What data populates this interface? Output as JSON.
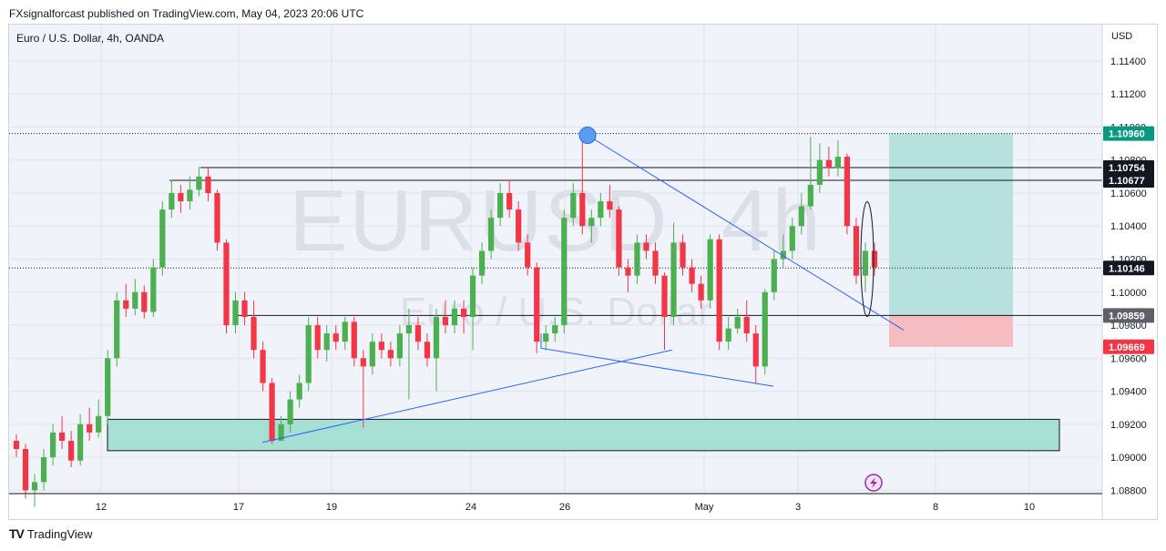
{
  "header": {
    "published": "FXsignalforcast published on TradingView.com, May 04, 2023 20:06 UTC"
  },
  "symbol_title": "Euro / U.S. Dollar, 4h, OANDA",
  "watermark": {
    "main": "EURUSD, 4h",
    "sub": "Euro / U.S. Dollar"
  },
  "currency": "USD",
  "footer": {
    "brand": "TradingView"
  },
  "colors": {
    "up": "#4caf50",
    "down": "#f23645",
    "trendline": "#2962ff",
    "zone": "#a6e0d3",
    "target_zone": "#b2dfdb",
    "stop_zone": "#f7b7bf",
    "target_label": "#089981",
    "stop_label": "#f23645",
    "level_label": "#131722",
    "current_label": "#131722"
  },
  "chart_data": {
    "type": "candlestick",
    "symbol": "EURUSD",
    "timeframe": "4h",
    "ylim": [
      1.0878,
      1.1162
    ],
    "y_ticks": [
      "1.11400",
      "1.11200",
      "1.11000",
      "1.10800",
      "1.10600",
      "1.10400",
      "1.10200",
      "1.10000",
      "1.09800",
      "1.09600",
      "1.09400",
      "1.09200",
      "1.09000",
      "1.08800"
    ],
    "x_ticks": [
      "12",
      "17",
      "19",
      "24",
      "26",
      "May",
      "3",
      "8",
      "10"
    ],
    "candles_sampled": [
      {
        "o": 1.091,
        "c": 1.0905,
        "h": 1.0914,
        "l": 1.09
      },
      {
        "o": 1.0905,
        "c": 1.088,
        "h": 1.0908,
        "l": 1.0875
      },
      {
        "o": 1.088,
        "c": 1.0885,
        "h": 1.089,
        "l": 1.087
      },
      {
        "o": 1.0885,
        "c": 1.09,
        "h": 1.0905,
        "l": 1.088
      },
      {
        "o": 1.09,
        "c": 1.0915,
        "h": 1.092,
        "l": 1.0895
      },
      {
        "o": 1.0915,
        "c": 1.091,
        "h": 1.0925,
        "l": 1.0905
      },
      {
        "o": 1.091,
        "c": 1.0898,
        "h": 1.0916,
        "l": 1.0894
      },
      {
        "o": 1.0898,
        "c": 1.092,
        "h": 1.0926,
        "l": 1.0895
      },
      {
        "o": 1.092,
        "c": 1.0915,
        "h": 1.093,
        "l": 1.091
      },
      {
        "o": 1.0915,
        "c": 1.0925,
        "h": 1.0935,
        "l": 1.0912
      },
      {
        "o": 1.0925,
        "c": 1.096,
        "h": 1.0965,
        "l": 1.092
      },
      {
        "o": 1.096,
        "c": 1.0995,
        "h": 1.1,
        "l": 1.0955
      },
      {
        "o": 1.0995,
        "c": 1.099,
        "h": 1.1005,
        "l": 1.0985
      },
      {
        "o": 1.099,
        "c": 1.1,
        "h": 1.1008,
        "l": 1.0986
      },
      {
        "o": 1.1,
        "c": 1.0988,
        "h": 1.1004,
        "l": 1.0984
      },
      {
        "o": 1.0988,
        "c": 1.1015,
        "h": 1.102,
        "l": 1.0985
      },
      {
        "o": 1.1015,
        "c": 1.105,
        "h": 1.1055,
        "l": 1.101
      },
      {
        "o": 1.105,
        "c": 1.106,
        "h": 1.1068,
        "l": 1.1045
      },
      {
        "o": 1.106,
        "c": 1.1055,
        "h": 1.1065,
        "l": 1.1048
      },
      {
        "o": 1.1055,
        "c": 1.1062,
        "h": 1.107,
        "l": 1.105
      },
      {
        "o": 1.1062,
        "c": 1.107,
        "h": 1.1076,
        "l": 1.1058
      },
      {
        "o": 1.107,
        "c": 1.106,
        "h": 1.1075,
        "l": 1.1055
      },
      {
        "o": 1.106,
        "c": 1.103,
        "h": 1.1062,
        "l": 1.1025
      },
      {
        "o": 1.103,
        "c": 1.098,
        "h": 1.1032,
        "l": 1.0975
      },
      {
        "o": 1.098,
        "c": 1.0995,
        "h": 1.1,
        "l": 1.0975
      },
      {
        "o": 1.0995,
        "c": 1.0985,
        "h": 1.1,
        "l": 1.098
      },
      {
        "o": 1.0985,
        "c": 1.0965,
        "h": 1.0995,
        "l": 1.096
      },
      {
        "o": 1.0965,
        "c": 1.0945,
        "h": 1.097,
        "l": 1.094
      },
      {
        "o": 1.0945,
        "c": 1.091,
        "h": 1.0948,
        "l": 1.0908
      },
      {
        "o": 1.091,
        "c": 1.092,
        "h": 1.0925,
        "l": 1.091
      },
      {
        "o": 1.092,
        "c": 1.0935,
        "h": 1.094,
        "l": 1.0915
      },
      {
        "o": 1.0935,
        "c": 1.0945,
        "h": 1.095,
        "l": 1.093
      },
      {
        "o": 1.0945,
        "c": 1.098,
        "h": 1.0985,
        "l": 1.094
      },
      {
        "o": 1.098,
        "c": 1.0965,
        "h": 1.0985,
        "l": 1.096
      },
      {
        "o": 1.0965,
        "c": 1.0975,
        "h": 1.098,
        "l": 1.0958
      },
      {
        "o": 1.0975,
        "c": 1.097,
        "h": 1.098,
        "l": 1.0965
      },
      {
        "o": 1.097,
        "c": 1.0982,
        "h": 1.0985,
        "l": 1.0965
      },
      {
        "o": 1.0982,
        "c": 1.096,
        "h": 1.0985,
        "l": 1.0955
      },
      {
        "o": 1.096,
        "c": 1.0955,
        "h": 1.0965,
        "l": 1.0918
      },
      {
        "o": 1.0955,
        "c": 1.097,
        "h": 1.0975,
        "l": 1.095
      },
      {
        "o": 1.097,
        "c": 1.0965,
        "h": 1.0975,
        "l": 1.096
      },
      {
        "o": 1.0965,
        "c": 1.096,
        "h": 1.097,
        "l": 1.0955
      },
      {
        "o": 1.096,
        "c": 1.0975,
        "h": 1.098,
        "l": 1.0955
      },
      {
        "o": 1.0975,
        "c": 1.098,
        "h": 1.099,
        "l": 1.0935
      },
      {
        "o": 1.098,
        "c": 1.097,
        "h": 1.0985,
        "l": 1.0965
      },
      {
        "o": 1.097,
        "c": 1.096,
        "h": 1.0975,
        "l": 1.0955
      },
      {
        "o": 1.096,
        "c": 1.0985,
        "h": 1.099,
        "l": 1.094
      },
      {
        "o": 1.0985,
        "c": 1.098,
        "h": 1.0995,
        "l": 1.0975
      },
      {
        "o": 1.098,
        "c": 1.099,
        "h": 1.0995,
        "l": 1.0975
      },
      {
        "o": 1.099,
        "c": 1.0985,
        "h": 1.0995,
        "l": 1.0975
      },
      {
        "o": 1.0985,
        "c": 1.101,
        "h": 1.1015,
        "l": 1.0965
      },
      {
        "o": 1.101,
        "c": 1.1025,
        "h": 1.103,
        "l": 1.1005
      },
      {
        "o": 1.1025,
        "c": 1.1045,
        "h": 1.105,
        "l": 1.102
      },
      {
        "o": 1.1045,
        "c": 1.106,
        "h": 1.1066,
        "l": 1.104
      },
      {
        "o": 1.106,
        "c": 1.105,
        "h": 1.1068,
        "l": 1.1045
      },
      {
        "o": 1.105,
        "c": 1.103,
        "h": 1.1055,
        "l": 1.1025
      },
      {
        "o": 1.103,
        "c": 1.1015,
        "h": 1.1035,
        "l": 1.101
      },
      {
        "o": 1.1015,
        "c": 1.097,
        "h": 1.1018,
        "l": 1.0963
      },
      {
        "o": 1.097,
        "c": 1.0975,
        "h": 1.098,
        "l": 1.0965
      },
      {
        "o": 1.0975,
        "c": 1.098,
        "h": 1.0985,
        "l": 1.097
      },
      {
        "o": 1.098,
        "c": 1.1045,
        "h": 1.105,
        "l": 1.0975
      },
      {
        "o": 1.1045,
        "c": 1.106,
        "h": 1.1066,
        "l": 1.104
      },
      {
        "o": 1.106,
        "c": 1.104,
        "h": 1.1096,
        "l": 1.1035
      },
      {
        "o": 1.104,
        "c": 1.1045,
        "h": 1.105,
        "l": 1.103
      },
      {
        "o": 1.1045,
        "c": 1.1055,
        "h": 1.106,
        "l": 1.104
      },
      {
        "o": 1.1055,
        "c": 1.105,
        "h": 1.1065,
        "l": 1.1045
      },
      {
        "o": 1.105,
        "c": 1.1015,
        "h": 1.1052,
        "l": 1.101
      },
      {
        "o": 1.1015,
        "c": 1.101,
        "h": 1.102,
        "l": 1.1
      },
      {
        "o": 1.101,
        "c": 1.103,
        "h": 1.1035,
        "l": 1.1005
      },
      {
        "o": 1.103,
        "c": 1.1025,
        "h": 1.1035,
        "l": 1.102
      },
      {
        "o": 1.1025,
        "c": 1.101,
        "h": 1.103,
        "l": 1.1005
      },
      {
        "o": 1.101,
        "c": 1.0985,
        "h": 1.1012,
        "l": 1.0965
      },
      {
        "o": 1.0985,
        "c": 1.103,
        "h": 1.1042,
        "l": 1.098
      },
      {
        "o": 1.103,
        "c": 1.1015,
        "h": 1.1035,
        "l": 1.101
      },
      {
        "o": 1.1015,
        "c": 1.1005,
        "h": 1.102,
        "l": 1.1
      },
      {
        "o": 1.1005,
        "c": 1.0995,
        "h": 1.101,
        "l": 1.099
      },
      {
        "o": 1.0995,
        "c": 1.1032,
        "h": 1.1035,
        "l": 1.099
      },
      {
        "o": 1.1032,
        "c": 1.097,
        "h": 1.1035,
        "l": 1.0965
      },
      {
        "o": 1.097,
        "c": 1.0978,
        "h": 1.0985,
        "l": 1.0965
      },
      {
        "o": 1.0978,
        "c": 1.0985,
        "h": 1.099,
        "l": 1.0975
      },
      {
        "o": 1.0985,
        "c": 1.0975,
        "h": 1.0995,
        "l": 1.097
      },
      {
        "o": 1.0975,
        "c": 1.0955,
        "h": 1.098,
        "l": 1.0945
      },
      {
        "o": 1.0955,
        "c": 1.1,
        "h": 1.1002,
        "l": 1.095
      },
      {
        "o": 1.1,
        "c": 1.102,
        "h": 1.1025,
        "l": 1.0995
      },
      {
        "o": 1.102,
        "c": 1.1025,
        "h": 1.1035,
        "l": 1.1015
      },
      {
        "o": 1.1025,
        "c": 1.104,
        "h": 1.1045,
        "l": 1.102
      },
      {
        "o": 1.104,
        "c": 1.1052,
        "h": 1.106,
        "l": 1.1035
      },
      {
        "o": 1.1052,
        "c": 1.1065,
        "h": 1.1094,
        "l": 1.105
      },
      {
        "o": 1.1065,
        "c": 1.108,
        "h": 1.109,
        "l": 1.106
      },
      {
        "o": 1.108,
        "c": 1.1075,
        "h": 1.1088,
        "l": 1.107
      },
      {
        "o": 1.1075,
        "c": 1.1082,
        "h": 1.1092,
        "l": 1.107
      },
      {
        "o": 1.1082,
        "c": 1.104,
        "h": 1.1084,
        "l": 1.1035
      },
      {
        "o": 1.104,
        "c": 1.101,
        "h": 1.1045,
        "l": 1.1005
      },
      {
        "o": 1.101,
        "c": 1.1025,
        "h": 1.103,
        "l": 1.1
      },
      {
        "o": 1.1025,
        "c": 1.1015,
        "h": 1.103,
        "l": 1.101
      }
    ],
    "levels": [
      {
        "name": "target",
        "value": "1.10960"
      },
      {
        "name": "resistance-1",
        "value": "1.10754"
      },
      {
        "name": "resistance-2",
        "value": "1.10677"
      },
      {
        "name": "current-price",
        "value": "1.10146"
      },
      {
        "name": "entry",
        "value": "1.09859"
      },
      {
        "name": "stop",
        "value": "1.09669"
      }
    ],
    "demand_zone": {
      "low": 1.0904,
      "high": 1.0923
    },
    "position": {
      "entry": 1.09859,
      "target": 1.1096,
      "stop": 1.09669
    },
    "grid": true,
    "legend": "none"
  }
}
